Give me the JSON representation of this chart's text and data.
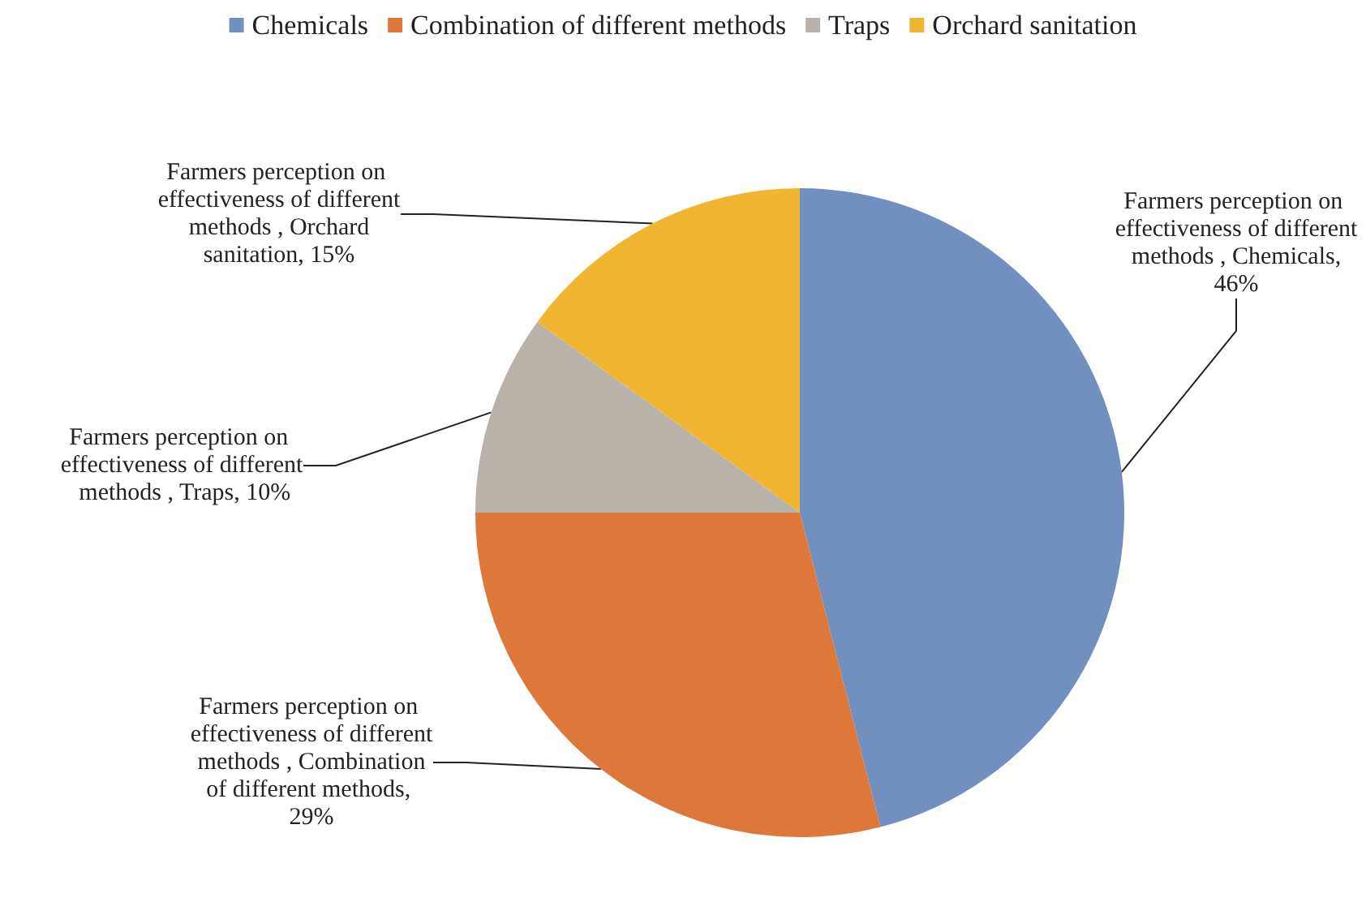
{
  "chart_data": {
    "type": "pie",
    "categories": [
      "Chemicals",
      "Combination of different methods",
      "Traps",
      "Orchard sanitation"
    ],
    "values": [
      46,
      29,
      10,
      15
    ],
    "value_labels": [
      "Farmers perception on effectiveness of different methods , Chemicals, 46%",
      "Farmers perception on effectiveness of different methods , Combination of different methods, 29%",
      "Farmers perception on effectiveness of different methods , Traps, 10%",
      "Farmers perception on effectiveness of different methods , Orchard sanitation, 15%"
    ],
    "colors": [
      "#7190bf",
      "#dd773a",
      "#b8b2aa",
      "#f0b631"
    ],
    "legend": "top"
  }
}
